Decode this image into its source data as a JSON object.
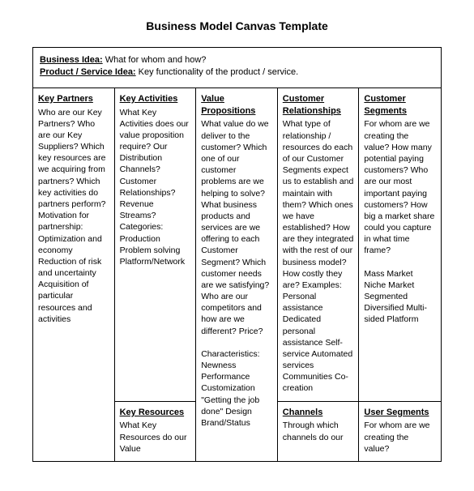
{
  "title": "Business Model Canvas Template",
  "header": {
    "idea_label": "Business Idea:",
    "idea_text": " What for whom and how?",
    "product_label": "Product / Service Idea:",
    "product_text": " Key functionality of the product / service."
  },
  "cells": {
    "key_partners": {
      "title": "Key Partners",
      "body": "Who are our Key Partners? Who are our Key Suppliers? Which key resources are we acquiring from partners? Which key activities do partners perform? Motivation for partnership: Optimization and economy Reduction of risk and uncertainty Acquisition of particular resources and activities"
    },
    "key_activities": {
      "title": "Key Activities",
      "body": "What Key Activities does our value proposition require? Our Distribution Channels? Customer Relationships? Revenue Streams? Categories: Production Problem solving Platform/Network"
    },
    "value_propositions": {
      "title": "Value Propositions",
      "body": "What value do we deliver to the customer? Which one of our customer problems are we helping to solve? What business products and services are we offering to each Customer Segment? Which customer needs are we satisfying? Who are our competitors and how are we different? Price?\n\nCharacteristics: Newness Performance Customization \"Getting the job done\" Design Brand/Status"
    },
    "customer_relationships": {
      "title": "Customer Relationships",
      "body": "What type of relationship / resources do each of our Customer Segments expect us to establish and maintain with them? Which ones we have established? How are they integrated with the rest of our business model? How costly they are? Examples: Personal assistance Dedicated personal assistance Self-service Automated services Communities Co-creation"
    },
    "customer_segments": {
      "title": "Customer Segments",
      "body": "For whom are we creating the value? How many potential paying customers? Who are our most important paying customers? How big a market share could you capture in what time frame?\n\nMass Market Niche Market Segmented Diversified Multi-sided Platform"
    },
    "key_resources": {
      "title": "Key Resources",
      "body": "What Key Resources do our Value"
    },
    "channels": {
      "title": "Channels",
      "body": "Through which channels do our"
    },
    "user_segments": {
      "title": "User Segments",
      "body": "For whom are we creating the value?"
    }
  }
}
